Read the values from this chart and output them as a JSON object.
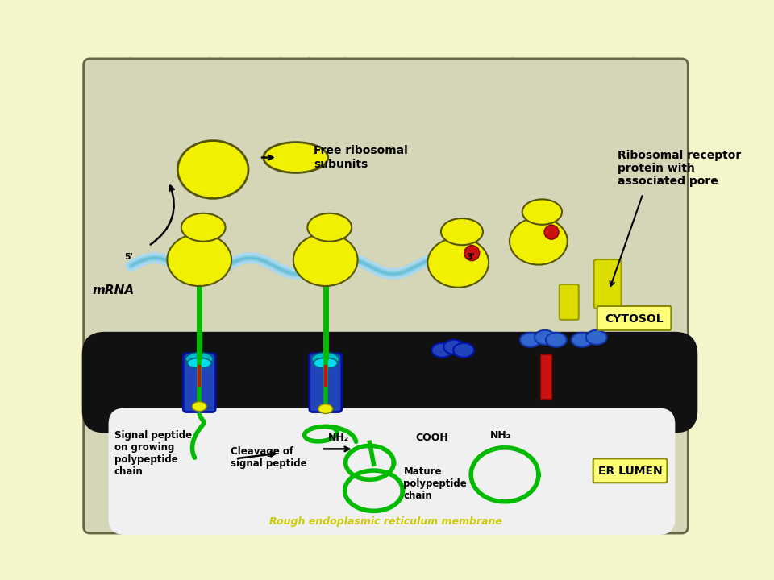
{
  "bg_color": "#f5f5cc",
  "diagram_bg": "#d8d8c0",
  "membrane_color": "#1a1a1a",
  "yellow": "#f0f000",
  "yellow_outline": "#555500",
  "blue_barrel": "#3355dd",
  "blue_dark": "#112299",
  "blue_ring": "#4488dd",
  "teal_ring": "#00aacc",
  "green": "#00bb00",
  "green_dark": "#009900",
  "red": "#cc1111",
  "cyan_mrna": "#aaddee",
  "lumen_bg": "#f0f0f0",
  "cytosol_box": "#ffff77",
  "title_bottom": "Rough endoplasmic reticulum membrane",
  "label_mrna": "mRNA",
  "label_free_ribo": "Free ribosomal\nsubunits",
  "label_receptor": "Ribosomal receptor\nprotein with\nassociated pore",
  "label_cytosol": "CYTOSOL",
  "label_er_lumen": "ER LUMEN",
  "label_signal": "Signal peptide\non growing\npolypeptide\nchain",
  "label_cleavage": "Cleavage of\nsignal peptide",
  "label_mature": "Mature\npolypeptide\nchain",
  "label_5prime": "5'",
  "label_3prime": "3'",
  "label_nh2_1": "NH₂",
  "label_cooh": "COOH",
  "label_nh2_2": "NH₂"
}
